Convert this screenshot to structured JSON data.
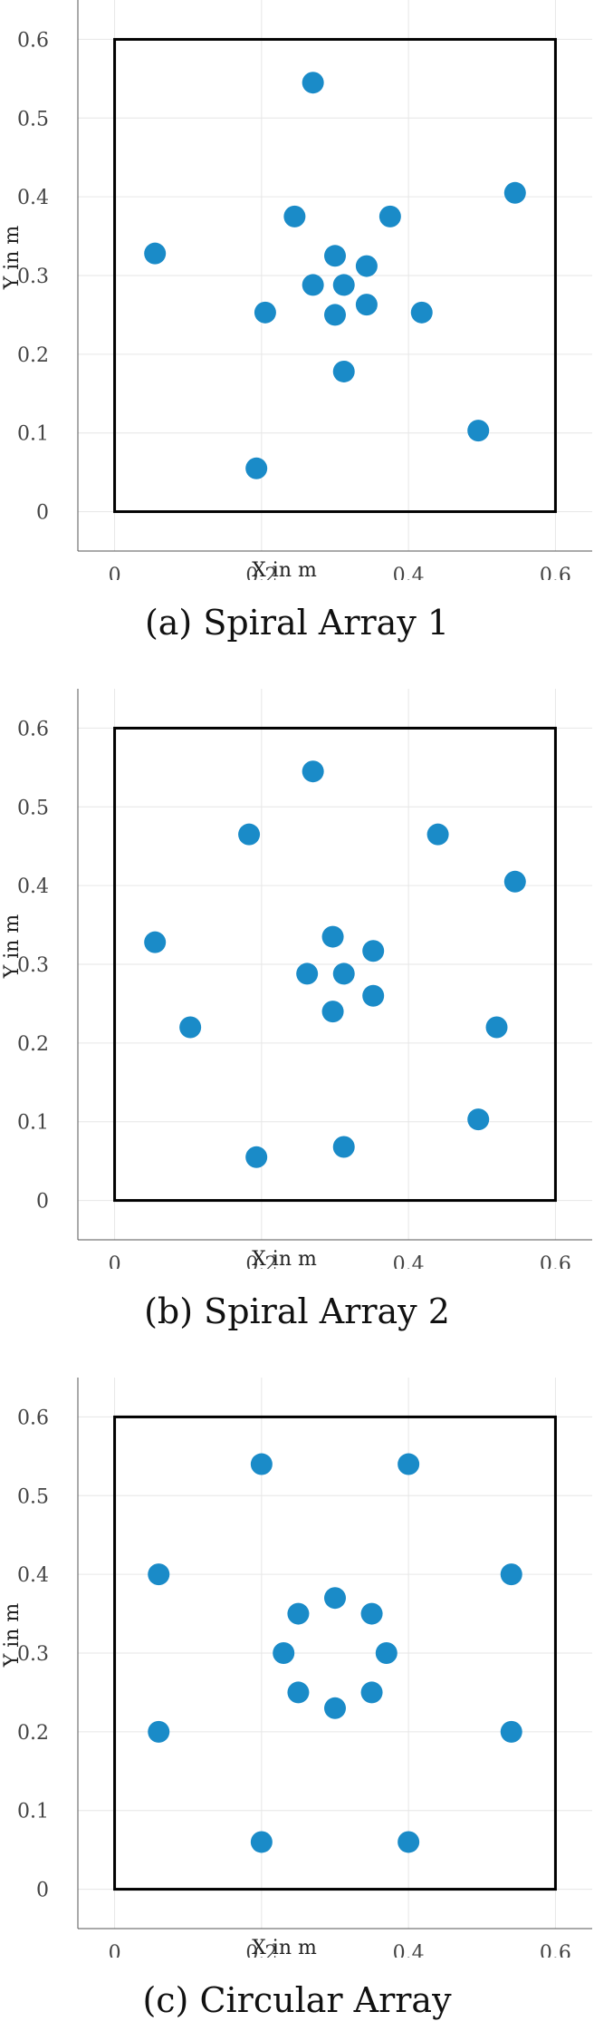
{
  "chart_data": [
    {
      "type": "scatter",
      "caption": "(a) Spiral Array 1",
      "xlabel": "X in m",
      "ylabel": "Y in m",
      "xlim": [
        -0.05,
        0.65
      ],
      "ylim": [
        -0.05,
        0.65
      ],
      "xticks": [
        "0",
        "0.2",
        "0.4",
        "0.6"
      ],
      "yticks": [
        "0",
        "0.1",
        "0.2",
        "0.3",
        "0.4",
        "0.5",
        "0.6"
      ],
      "grid": true,
      "marker_color": "#1a8bc8",
      "frame": {
        "x": [
          0,
          0.6
        ],
        "y": [
          0,
          0.6
        ]
      },
      "points": [
        {
          "x": 0.27,
          "y": 0.545
        },
        {
          "x": 0.545,
          "y": 0.405
        },
        {
          "x": 0.245,
          "y": 0.375
        },
        {
          "x": 0.375,
          "y": 0.375
        },
        {
          "x": 0.055,
          "y": 0.328
        },
        {
          "x": 0.3,
          "y": 0.325
        },
        {
          "x": 0.343,
          "y": 0.312
        },
        {
          "x": 0.27,
          "y": 0.288
        },
        {
          "x": 0.312,
          "y": 0.288
        },
        {
          "x": 0.343,
          "y": 0.263
        },
        {
          "x": 0.205,
          "y": 0.253
        },
        {
          "x": 0.3,
          "y": 0.25
        },
        {
          "x": 0.418,
          "y": 0.253
        },
        {
          "x": 0.312,
          "y": 0.178
        },
        {
          "x": 0.495,
          "y": 0.103
        },
        {
          "x": 0.193,
          "y": 0.055
        }
      ]
    },
    {
      "type": "scatter",
      "caption": "(b) Spiral Array 2",
      "xlabel": "X in m",
      "ylabel": "Y in m",
      "xlim": [
        -0.05,
        0.65
      ],
      "ylim": [
        -0.05,
        0.65
      ],
      "xticks": [
        "0",
        "0.2",
        "0.4",
        "0.6"
      ],
      "yticks": [
        "0",
        "0.1",
        "0.2",
        "0.3",
        "0.4",
        "0.5",
        "0.6"
      ],
      "grid": true,
      "marker_color": "#1a8bc8",
      "frame": {
        "x": [
          0,
          0.6
        ],
        "y": [
          0,
          0.6
        ]
      },
      "points": [
        {
          "x": 0.27,
          "y": 0.545
        },
        {
          "x": 0.183,
          "y": 0.465
        },
        {
          "x": 0.44,
          "y": 0.465
        },
        {
          "x": 0.545,
          "y": 0.405
        },
        {
          "x": 0.055,
          "y": 0.328
        },
        {
          "x": 0.297,
          "y": 0.335
        },
        {
          "x": 0.352,
          "y": 0.317
        },
        {
          "x": 0.262,
          "y": 0.288
        },
        {
          "x": 0.312,
          "y": 0.288
        },
        {
          "x": 0.352,
          "y": 0.26
        },
        {
          "x": 0.297,
          "y": 0.24
        },
        {
          "x": 0.103,
          "y": 0.22
        },
        {
          "x": 0.52,
          "y": 0.22
        },
        {
          "x": 0.495,
          "y": 0.103
        },
        {
          "x": 0.312,
          "y": 0.068
        },
        {
          "x": 0.193,
          "y": 0.055
        }
      ]
    },
    {
      "type": "scatter",
      "caption": "(c) Circular Array",
      "xlabel": "X in m",
      "ylabel": "Y in m",
      "xlim": [
        -0.05,
        0.65
      ],
      "ylim": [
        -0.05,
        0.65
      ],
      "xticks": [
        "0",
        "0.2",
        "0.4",
        "0.6"
      ],
      "yticks": [
        "0",
        "0.1",
        "0.2",
        "0.3",
        "0.4",
        "0.5",
        "0.6"
      ],
      "grid": true,
      "marker_color": "#1a8bc8",
      "frame": {
        "x": [
          0,
          0.6
        ],
        "y": [
          0,
          0.6
        ]
      },
      "points": [
        {
          "x": 0.2,
          "y": 0.54
        },
        {
          "x": 0.4,
          "y": 0.54
        },
        {
          "x": 0.06,
          "y": 0.4
        },
        {
          "x": 0.54,
          "y": 0.4
        },
        {
          "x": 0.3,
          "y": 0.37
        },
        {
          "x": 0.25,
          "y": 0.35
        },
        {
          "x": 0.35,
          "y": 0.35
        },
        {
          "x": 0.23,
          "y": 0.3
        },
        {
          "x": 0.37,
          "y": 0.3
        },
        {
          "x": 0.25,
          "y": 0.25
        },
        {
          "x": 0.35,
          "y": 0.25
        },
        {
          "x": 0.3,
          "y": 0.23
        },
        {
          "x": 0.06,
          "y": 0.2
        },
        {
          "x": 0.54,
          "y": 0.2
        },
        {
          "x": 0.2,
          "y": 0.06
        },
        {
          "x": 0.4,
          "y": 0.06
        }
      ]
    }
  ]
}
